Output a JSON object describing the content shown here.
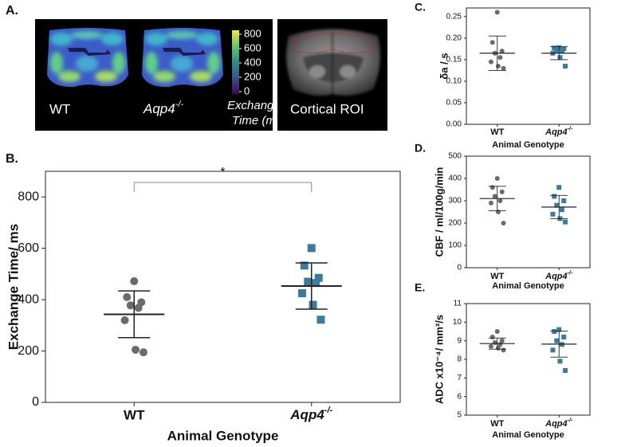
{
  "panel_a": {
    "label": "A.",
    "wt_label": "WT",
    "ko_label": "Aqp4-/-",
    "colorbar_label": [
      "Exchange",
      "Time (ms)"
    ],
    "colorbar_lim": [
      0,
      800
    ],
    "colorbar_ticks": [
      800,
      600,
      400,
      200,
      0
    ],
    "roi_label": "Cortical ROI"
  },
  "chart_data": [
    {
      "type": "strip",
      "label": "B.",
      "y_label": "Exchange Time/ ms",
      "x_label": "Animal Genotype",
      "annotation": "*",
      "categories": [
        "WT",
        "Aqp4-/-"
      ],
      "ylim": [
        0,
        900
      ],
      "yticks": [
        0,
        200,
        400,
        600,
        800
      ],
      "series": [
        {
          "name": "WT",
          "color": "#6b6b6b",
          "marker": "circle",
          "values": [
            472,
            410,
            390,
            378,
            368,
            320,
            205,
            195
          ],
          "mean": 343,
          "sd": 91
        },
        {
          "name": "Aqp4-/-",
          "color": "#3b7ba0",
          "marker": "square",
          "values": [
            601,
            533,
            485,
            470,
            465,
            425,
            380,
            322
          ],
          "mean": 453,
          "sd": 90
        }
      ]
    },
    {
      "type": "strip",
      "label": "C.",
      "y_label": "δa / s",
      "x_label": "Animal Genotype",
      "categories": [
        "WT",
        "Aqp4-/-"
      ],
      "ylim": [
        0,
        0.27
      ],
      "yticks": [
        {
          "value": 0,
          "label": "0.00"
        },
        0.05,
        {
          "value": 0.1,
          "label": "0.10"
        },
        0.15,
        {
          "value": 0.2,
          "label": "0.20"
        },
        0.25
      ],
      "series": [
        {
          "name": "WT",
          "color": "#6b6b6b",
          "marker": "circle",
          "values": [
            0.26,
            0.19,
            0.17,
            0.165,
            0.155,
            0.145,
            0.135,
            0.13
          ],
          "mean": 0.165,
          "sd": 0.04
        },
        {
          "name": "Aqp4-/-",
          "color": "#3b7ba0",
          "marker": "square",
          "values": [
            0.178,
            0.177,
            0.175,
            0.172,
            0.17,
            0.165,
            0.155,
            0.135
          ],
          "mean": 0.165,
          "sd": 0.015
        }
      ]
    },
    {
      "type": "strip",
      "label": "D.",
      "y_label": "CBF / ml/100g/min",
      "x_label": "Animal Genotype",
      "categories": [
        "WT",
        "Aqp4-/-"
      ],
      "ylim": [
        0,
        500
      ],
      "yticks": [
        0,
        100,
        200,
        300,
        400,
        500
      ],
      "series": [
        {
          "name": "WT",
          "color": "#6b6b6b",
          "marker": "circle",
          "values": [
            400,
            360,
            340,
            320,
            300,
            290,
            250,
            200
          ],
          "mean": 310,
          "sd": 55
        },
        {
          "name": "Aqp4-/-",
          "color": "#3b7ba0",
          "marker": "square",
          "values": [
            360,
            320,
            300,
            280,
            260,
            240,
            220,
            205
          ],
          "mean": 272,
          "sd": 52
        }
      ]
    },
    {
      "type": "strip",
      "label": "E.",
      "y_label": "ADC x10⁻⁴/ mm²/s",
      "x_label": "Animal Genotype",
      "categories": [
        "WT",
        "Aqp4-/-"
      ],
      "ylim": [
        5,
        11
      ],
      "yticks": [
        5,
        6,
        7,
        8,
        9,
        10,
        11
      ],
      "series": [
        {
          "name": "WT",
          "color": "#6b6b6b",
          "marker": "circle",
          "values": [
            9.5,
            9.2,
            9.0,
            8.9,
            8.8,
            8.7,
            8.6,
            8.5
          ],
          "mean": 8.85,
          "sd": 0.3
        },
        {
          "name": "Aqp4-/-",
          "color": "#3b7ba0",
          "marker": "square",
          "values": [
            9.6,
            9.5,
            9.2,
            9.0,
            8.8,
            8.5,
            7.9,
            7.4
          ],
          "mean": 8.82,
          "sd": 0.7
        }
      ]
    }
  ]
}
